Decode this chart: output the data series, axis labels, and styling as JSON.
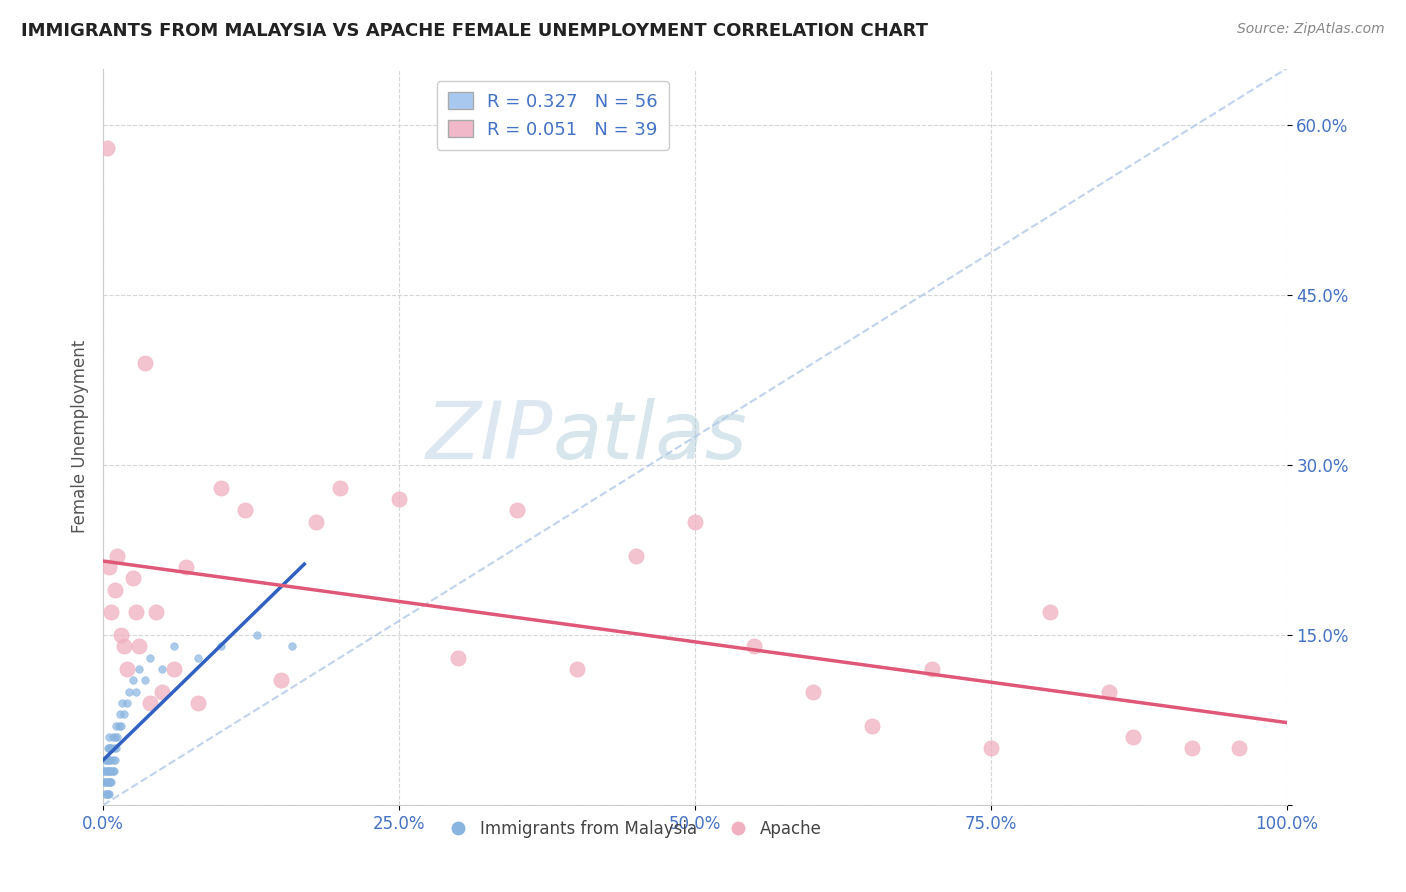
{
  "title": "IMMIGRANTS FROM MALAYSIA VS APACHE FEMALE UNEMPLOYMENT CORRELATION CHART",
  "source": "Source: ZipAtlas.com",
  "ylabel": "Female Unemployment",
  "xlim": [
    0,
    1.0
  ],
  "ylim": [
    0,
    0.65
  ],
  "x_ticks": [
    0.0,
    0.25,
    0.5,
    0.75,
    1.0
  ],
  "x_tick_labels": [
    "0.0%",
    "25.0%",
    "50.0%",
    "75.0%",
    "100.0%"
  ],
  "y_ticks": [
    0.0,
    0.15,
    0.3,
    0.45,
    0.6
  ],
  "y_tick_labels": [
    "",
    "15.0%",
    "30.0%",
    "45.0%",
    "60.0%"
  ],
  "color_blue_patch": "#a8c8f0",
  "color_pink_patch": "#f0b8c8",
  "dot_blue": "#89b4e0",
  "dot_pink": "#f0b0c0",
  "trend_blue": "#3060c0",
  "trend_pink": "#e05878",
  "diag_color": "#b0c8e8",
  "background": "#ffffff",
  "grid_color": "#cccccc",
  "watermark_zip": "ZIP",
  "watermark_atlas": "atlas",
  "label_color": "#4472c4",
  "blue_scatter_x": [
    0.001,
    0.001,
    0.002,
    0.002,
    0.002,
    0.002,
    0.003,
    0.003,
    0.003,
    0.003,
    0.004,
    0.004,
    0.004,
    0.004,
    0.004,
    0.005,
    0.005,
    0.005,
    0.005,
    0.005,
    0.005,
    0.006,
    0.006,
    0.006,
    0.006,
    0.007,
    0.007,
    0.007,
    0.008,
    0.008,
    0.008,
    0.009,
    0.009,
    0.01,
    0.01,
    0.011,
    0.011,
    0.012,
    0.013,
    0.014,
    0.015,
    0.016,
    0.018,
    0.02,
    0.022,
    0.025,
    0.028,
    0.03,
    0.035,
    0.04,
    0.05,
    0.06,
    0.08,
    0.1,
    0.13,
    0.16
  ],
  "blue_scatter_y": [
    0.02,
    0.03,
    0.01,
    0.02,
    0.03,
    0.04,
    0.01,
    0.02,
    0.03,
    0.04,
    0.01,
    0.02,
    0.03,
    0.04,
    0.05,
    0.01,
    0.02,
    0.03,
    0.04,
    0.05,
    0.06,
    0.02,
    0.03,
    0.04,
    0.05,
    0.02,
    0.03,
    0.05,
    0.03,
    0.04,
    0.06,
    0.03,
    0.05,
    0.04,
    0.06,
    0.05,
    0.07,
    0.06,
    0.07,
    0.08,
    0.07,
    0.09,
    0.08,
    0.09,
    0.1,
    0.11,
    0.1,
    0.12,
    0.11,
    0.13,
    0.12,
    0.14,
    0.13,
    0.14,
    0.15,
    0.14
  ],
  "pink_scatter_x": [
    0.003,
    0.005,
    0.007,
    0.01,
    0.012,
    0.015,
    0.018,
    0.02,
    0.025,
    0.028,
    0.03,
    0.035,
    0.04,
    0.045,
    0.05,
    0.06,
    0.07,
    0.08,
    0.1,
    0.12,
    0.15,
    0.18,
    0.2,
    0.25,
    0.3,
    0.35,
    0.4,
    0.45,
    0.5,
    0.55,
    0.6,
    0.65,
    0.7,
    0.75,
    0.8,
    0.85,
    0.87,
    0.92,
    0.96
  ],
  "pink_scatter_y": [
    0.58,
    0.21,
    0.17,
    0.19,
    0.22,
    0.15,
    0.14,
    0.12,
    0.2,
    0.17,
    0.14,
    0.39,
    0.09,
    0.17,
    0.1,
    0.12,
    0.21,
    0.09,
    0.28,
    0.26,
    0.11,
    0.25,
    0.28,
    0.27,
    0.13,
    0.26,
    0.12,
    0.22,
    0.25,
    0.14,
    0.1,
    0.07,
    0.12,
    0.05,
    0.17,
    0.1,
    0.06,
    0.05,
    0.05
  ]
}
